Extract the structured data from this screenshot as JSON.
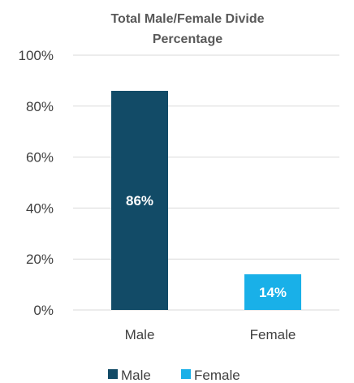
{
  "chart_data": {
    "type": "bar",
    "title_lines": [
      "Total Male/Female Divide",
      "Percentage"
    ],
    "categories": [
      "Male",
      "Female"
    ],
    "values": [
      86,
      14
    ],
    "data_labels": [
      "86%",
      "14%"
    ],
    "colors": [
      "#124b67",
      "#19b0e8"
    ],
    "ylim": [
      0,
      100
    ],
    "yticks": [
      "0%",
      "20%",
      "40%",
      "60%",
      "80%",
      "100%"
    ],
    "grid": true,
    "legend": {
      "placement": "bottom",
      "entries": [
        "Male",
        "Female"
      ]
    }
  }
}
